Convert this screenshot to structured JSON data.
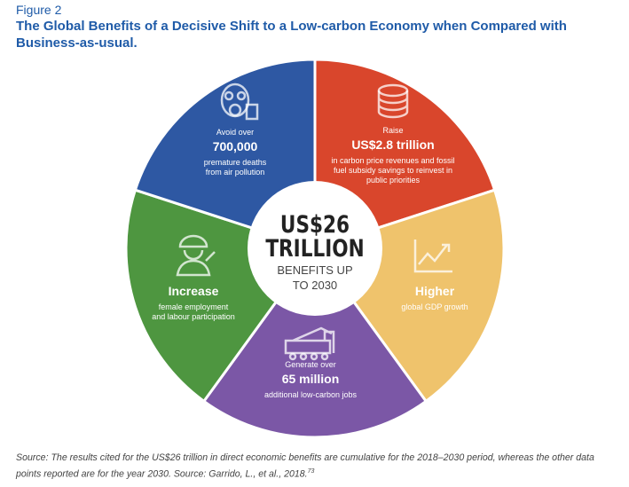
{
  "figure_label": "Figure 2",
  "title": "The Global Benefits of a Decisive Shift to a Low-carbon Economy when Compared with Business-as-usual.",
  "center": {
    "lines": [
      "US$26",
      "TRILLION"
    ],
    "sub_lines": [
      "BENEFITS UP",
      "TO 2030"
    ]
  },
  "segments": [
    {
      "color": "#d9462c",
      "intro": "Raise",
      "headline": "US$2.8 trillion",
      "description_lines": [
        "in carbon price revenues and fossil",
        "fuel subsidy savings to reinvest in",
        "public priorities"
      ]
    },
    {
      "color": "#efc36c",
      "headline": "Higher",
      "description_lines": [
        "global GDP growth"
      ]
    },
    {
      "color": "#7b57a6",
      "intro": "Generate over",
      "headline": "65 million",
      "description_lines": [
        "additional low-carbon jobs"
      ]
    },
    {
      "color": "#4e9640",
      "headline": "Increase",
      "description_lines": [
        "female employment",
        "and labour participation"
      ]
    },
    {
      "color": "#2e58a3",
      "intro": "Avoid over",
      "headline": "700,000",
      "description_lines": [
        "premature deaths",
        "from air pollution"
      ]
    }
  ],
  "source": {
    "text": "Source: The results cited for the US$26 trillion in direct economic benefits are cumulative for the 2018–2030 period, whereas the other data points reported are for the year 2030. Source: Garrido, L., et al., 2018.",
    "footnote_ref": "73"
  }
}
